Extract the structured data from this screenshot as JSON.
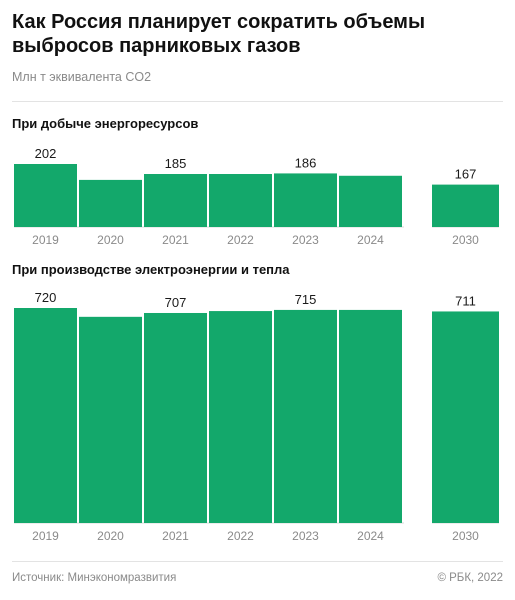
{
  "header": {
    "title": "Как Россия планирует сократить объемы выбросов парниковых газов",
    "subtitle": "Млн т эквивалента CO2"
  },
  "chart_data": [
    {
      "type": "bar",
      "title": "При добыче энергоресурсов",
      "categories": [
        "2019",
        "2020",
        "2021",
        "2022",
        "2023",
        "2024",
        "2030"
      ],
      "values": [
        202,
        175,
        185,
        185,
        186,
        182,
        167
      ],
      "data_labels": [
        "202",
        "",
        "185",
        "",
        "186",
        "",
        "167"
      ],
      "color": "#13a86b"
    },
    {
      "type": "bar",
      "title": "При производстве электроэнергии и тепла",
      "categories": [
        "2019",
        "2020",
        "2021",
        "2022",
        "2023",
        "2024",
        "2030"
      ],
      "values": [
        720,
        697,
        707,
        712,
        715,
        715,
        711
      ],
      "data_labels": [
        "720",
        "",
        "707",
        "",
        "715",
        "",
        "711"
      ],
      "color": "#13a86b"
    }
  ],
  "footer": {
    "source": "Источник: Минэкономразвития",
    "copyright": "© РБК, 2022"
  }
}
